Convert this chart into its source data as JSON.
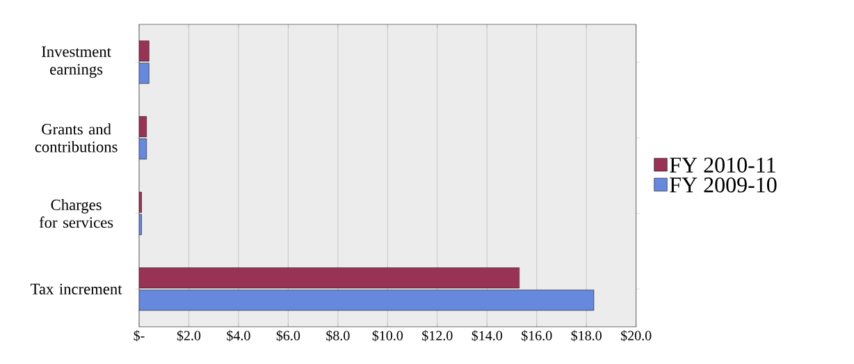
{
  "chart_data": {
    "type": "bar",
    "orientation": "horizontal",
    "categories": [
      "Investment earnings",
      "Grants and contributions",
      "Charges for services",
      "Tax increment"
    ],
    "series": [
      {
        "name": "FY 2010-11",
        "color": "#993355",
        "values": [
          0.4,
          0.3,
          0.1,
          15.3
        ]
      },
      {
        "name": "FY 2009-10",
        "color": "#6688dd",
        "values": [
          0.4,
          0.3,
          0.1,
          18.3
        ]
      }
    ],
    "xlim": [
      0,
      20
    ],
    "xticks": [
      {
        "value": 0,
        "label": "$-"
      },
      {
        "value": 2,
        "label": "$2.0"
      },
      {
        "value": 4,
        "label": "$4.0"
      },
      {
        "value": 6,
        "label": "$6.0"
      },
      {
        "value": 8,
        "label": "$8.0"
      },
      {
        "value": 10,
        "label": "$10.0"
      },
      {
        "value": 12,
        "label": "$12.0"
      },
      {
        "value": 14,
        "label": "$14.0"
      },
      {
        "value": 16,
        "label": "$16.0"
      },
      {
        "value": 18,
        "label": "$18.0"
      },
      {
        "value": 20,
        "label": "$20.0"
      }
    ],
    "grid": "x",
    "legend": "right"
  }
}
